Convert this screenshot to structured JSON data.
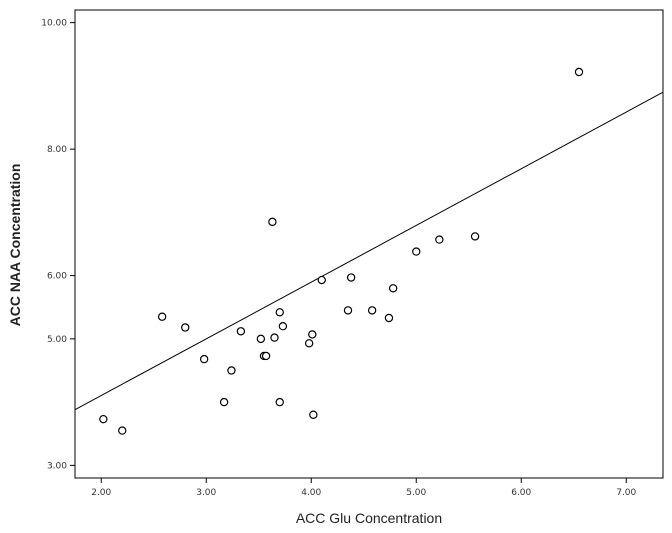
{
  "chart_data": {
    "type": "scatter",
    "xlabel": "ACC Glu Concentration",
    "ylabel": "ACC NAA Concentration",
    "xlim": [
      1.75,
      7.35
    ],
    "ylim": [
      2.8,
      10.2
    ],
    "x_ticks": [
      2.0,
      3.0,
      4.0,
      5.0,
      6.0,
      7.0
    ],
    "x_tick_labels": [
      "2.00",
      "3.00",
      "4.00",
      "5.00",
      "6.00",
      "7.00"
    ],
    "y_ticks": [
      3.0,
      5.0,
      6.0,
      8.0,
      10.0
    ],
    "y_tick_labels": [
      "3.00",
      "5.00",
      "6.00",
      "8.00",
      "10.00"
    ],
    "grid": false,
    "legend": "none",
    "fit_line": {
      "x": [
        1.75,
        7.35
      ],
      "y": [
        3.88,
        8.9
      ]
    },
    "points": {
      "x": [
        2.02,
        2.2,
        2.58,
        2.8,
        2.98,
        3.17,
        3.24,
        3.33,
        3.52,
        3.55,
        3.57,
        3.63,
        3.65,
        3.7,
        3.7,
        3.73,
        3.98,
        4.01,
        4.02,
        4.1,
        4.35,
        4.38,
        4.58,
        4.74,
        4.78,
        5.0,
        5.22,
        5.56,
        6.55
      ],
      "y": [
        3.73,
        3.55,
        5.35,
        5.18,
        4.68,
        4.0,
        4.5,
        5.12,
        5.0,
        4.73,
        4.73,
        6.85,
        5.02,
        5.42,
        4.0,
        5.2,
        4.93,
        5.07,
        3.8,
        5.93,
        5.45,
        5.97,
        5.45,
        5.33,
        5.8,
        6.38,
        6.57,
        6.62,
        9.22
      ]
    }
  }
}
